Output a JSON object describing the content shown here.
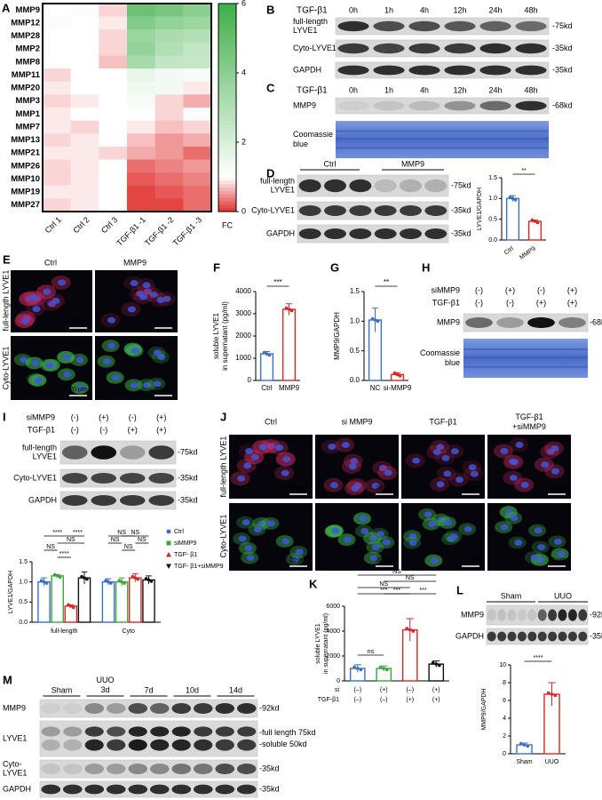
{
  "chart_data": [
    {
      "type": "heatmap",
      "rows": [
        "MMP9",
        "MMP12",
        "MMP28",
        "MMP2",
        "MMP8",
        "MMP11",
        "MMP20",
        "MMP3",
        "MMP1",
        "MMP7",
        "MMP13",
        "MMP21",
        "MMP26",
        "MMP10",
        "MMP19",
        "MMP27"
      ],
      "columns": [
        "Ctrl 1",
        "Ctrl 2",
        "Ctrl 3",
        "TGF-β1 -1",
        "TGF-β1 -2",
        "TGF-β1 -3"
      ],
      "values": [
        [
          1.0,
          1.1,
          0.8,
          4.8,
          4.5,
          4.0
        ],
        [
          1.1,
          1.0,
          0.9,
          4.2,
          3.8,
          3.6
        ],
        [
          1.0,
          1.0,
          0.8,
          3.6,
          3.2,
          3.0
        ],
        [
          1.0,
          1.0,
          0.8,
          3.8,
          3.0,
          2.6
        ],
        [
          1.0,
          1.0,
          0.7,
          3.3,
          2.6,
          2.5
        ],
        [
          0.8,
          1.0,
          1.0,
          1.6,
          1.3,
          1.2
        ],
        [
          0.9,
          1.0,
          1.0,
          1.4,
          1.3,
          0.9
        ],
        [
          0.8,
          0.9,
          1.0,
          1.2,
          0.8,
          0.6
        ],
        [
          0.9,
          1.0,
          1.0,
          1.0,
          0.8,
          1.1
        ],
        [
          0.9,
          0.8,
          1.0,
          0.9,
          0.7,
          0.8
        ],
        [
          0.8,
          0.9,
          1.0,
          0.7,
          0.5,
          0.6
        ],
        [
          0.9,
          0.9,
          0.8,
          0.6,
          0.5,
          0.3
        ],
        [
          0.8,
          0.9,
          1.0,
          0.3,
          0.4,
          0.5
        ],
        [
          0.8,
          0.9,
          1.0,
          0.2,
          0.3,
          0.4
        ],
        [
          0.9,
          0.9,
          1.0,
          0.1,
          0.2,
          0.3
        ],
        [
          0.8,
          0.9,
          1.0,
          0.1,
          0.1,
          0.3
        ]
      ],
      "zlabel": "FC",
      "zlim": [
        0,
        6
      ],
      "zticks": [
        0,
        2,
        4,
        6
      ],
      "colors": {
        "low": "#e0302e",
        "mid": "#ffffff",
        "high": "#3fae49"
      },
      "midpoint": 1
    },
    {
      "type": "bar",
      "ylabel": [
        "LYVE1/GAPDH"
      ],
      "categories": [
        "Ctrl",
        "MMP9"
      ],
      "values": [
        1.0,
        0.45
      ],
      "errors": [
        0.07,
        0.03
      ],
      "colors": [
        "#3b6fc4",
        "#d62728"
      ],
      "ylim": [
        0,
        1.5
      ],
      "yticks": [
        {
          "value": 0,
          "label": "0.0"
        },
        {
          "value": 0.5,
          "label": "0.5"
        },
        {
          "value": 1,
          "label": "1.0"
        },
        {
          "value": 1.5,
          "label": "1.5"
        }
      ],
      "annotations": [
        "**"
      ]
    },
    {
      "type": "bar",
      "ylabel": [
        "soluble LYVE1",
        "in supernatant (pg/ml)"
      ],
      "categories": [
        "Ctrl",
        "MMP9"
      ],
      "values": [
        1200,
        3200
      ],
      "errors": [
        100,
        250
      ],
      "colors": [
        "#3b6fc4",
        "#d62728"
      ],
      "ylim": [
        0,
        4000
      ],
      "yticks": [
        0,
        1000,
        2000,
        3000,
        4000
      ],
      "annotations": [
        "***"
      ]
    },
    {
      "type": "bar",
      "ylabel": [
        "MMP9/GAPDH"
      ],
      "categories": [
        "NC",
        "si-MMP9"
      ],
      "values": [
        1.02,
        0.1
      ],
      "errors": [
        0.2,
        0.03
      ],
      "colors": [
        "#3b6fc4",
        "#d62728"
      ],
      "ylim": [
        0,
        1.5
      ],
      "yticks": [
        {
          "value": 0,
          "label": "0.0"
        },
        {
          "value": 0.5,
          "label": "0.5"
        },
        {
          "value": 1,
          "label": "1.0"
        },
        {
          "value": 1.5,
          "label": "1.5"
        }
      ],
      "annotations": [
        "**"
      ]
    },
    {
      "type": "grouped-bar",
      "ylabel": [
        "LYVE1/GAPDH"
      ],
      "categories": [
        "full-length",
        "Cyto"
      ],
      "series": [
        {
          "name": "Ctrl",
          "color": "#3b6fc4",
          "values": [
            1.0,
            1.0
          ],
          "errors": [
            0.1,
            0.08
          ]
        },
        {
          "name": "siMMP9",
          "color": "#3aa63a",
          "values": [
            1.15,
            1.0
          ],
          "errors": [
            0.03,
            0.1
          ]
        },
        {
          "name": "TGF- β1",
          "color": "#d62728",
          "values": [
            0.4,
            1.1
          ],
          "errors": [
            0.03,
            0.1
          ]
        },
        {
          "name": "TGF- β1+siMMP9",
          "color": "#111111",
          "values": [
            1.1,
            1.05
          ],
          "errors": [
            0.15,
            0.1
          ]
        }
      ],
      "ylim": [
        0,
        1.5
      ],
      "yticks": [
        {
          "value": 0,
          "label": "0.0"
        },
        {
          "value": 0.5,
          "label": "0.5"
        },
        {
          "value": 1,
          "label": "1.0"
        },
        {
          "value": 1.5,
          "label": "1.5"
        }
      ],
      "annotations": [
        "****",
        "****",
        "NS",
        "NS",
        "****",
        "NS",
        "NS",
        "NS",
        "NS",
        "NS"
      ]
    },
    {
      "type": "bar",
      "ylabel": [
        "soluble LYVE1",
        "in supernatant (pg/ml)"
      ],
      "values": [
        1000,
        1000,
        4100,
        1350
      ],
      "errors": [
        300,
        200,
        900,
        250
      ],
      "colors": [
        "#3b6fc4",
        "#3aa63a",
        "#d62728",
        "#111111"
      ],
      "conditions": [
        {
          "name": "si",
          "signs": [
            "(–)",
            "(+)",
            "(–)",
            "(+)"
          ]
        },
        {
          "name": "TGF-β1",
          "signs": [
            "(–)",
            "(–)",
            "(+)",
            "(+)"
          ]
        }
      ],
      "ylim": [
        0,
        6000
      ],
      "yticks": [
        0,
        2000,
        4000,
        6000
      ],
      "annotations": [
        "NS",
        "NS",
        "NS",
        "***",
        "***",
        "***",
        "ns"
      ]
    },
    {
      "type": "bar",
      "ylabel": [
        "MMP9/GAPDH"
      ],
      "categories": [
        "Sham",
        "UUO"
      ],
      "values": [
        1.0,
        6.7
      ],
      "errors": [
        0.2,
        1.3
      ],
      "colors": [
        "#3b6fc4",
        "#d62728"
      ],
      "ylim": [
        0,
        10
      ],
      "yticks": [
        0,
        2,
        4,
        6,
        8,
        10
      ],
      "annotations": [
        "****"
      ]
    }
  ],
  "panels": {
    "A": {
      "label": "A"
    },
    "B": {
      "label": "B",
      "treatment": "TGF-β1",
      "times": [
        "0h",
        "1h",
        "4h",
        "12h",
        "24h",
        "48h"
      ],
      "blots": [
        {
          "name": [
            "full-length",
            "LYVE1"
          ],
          "size": "-75kd"
        },
        {
          "name": [
            "Cyto-LYVE1"
          ],
          "size": "-35kd"
        },
        {
          "name": [
            "GAPDH"
          ],
          "size": "-35kd"
        }
      ]
    },
    "C": {
      "label": "C",
      "treatment": "TGF-β1",
      "times": [
        "0h",
        "1h",
        "4h",
        "12h",
        "24h",
        "48h"
      ],
      "blots": [
        {
          "name": [
            "MMP9"
          ],
          "size": "-68kd"
        }
      ],
      "stain": [
        "Coomassie",
        "blue"
      ]
    },
    "D": {
      "label": "D",
      "groups": [
        "Ctrl",
        "MMP9"
      ],
      "blots": [
        {
          "name": [
            "full-length",
            "LYVE1"
          ],
          "size": "-75kd"
        },
        {
          "name": [
            "Cyto-LYVE1"
          ],
          "size": "-35kd"
        },
        {
          "name": [
            "GAPDH"
          ],
          "size": "-35kd"
        }
      ]
    },
    "E": {
      "label": "E",
      "columns": [
        "Ctrl",
        "MMP9"
      ],
      "rows": [
        "full-length LYVE1",
        "Cyto-LYVE1"
      ],
      "scale": "20 µm"
    },
    "F": {
      "label": "F"
    },
    "G": {
      "label": "G"
    },
    "H": {
      "label": "H",
      "conditions": [
        {
          "name": "siMMP9",
          "signs": [
            "(-)",
            "(+)",
            "(-)",
            "(+)"
          ]
        },
        {
          "name": "TGF-β1",
          "signs": [
            "(-)",
            "(-)",
            "(+)",
            "(+)"
          ]
        }
      ],
      "blots": [
        {
          "name": [
            "MMP9"
          ],
          "size": "-68kd"
        }
      ],
      "stain": [
        "Coomassie",
        "blue"
      ]
    },
    "I": {
      "label": "I",
      "conditions": [
        {
          "name": "siMMP9",
          "signs": [
            "(-)",
            "(+)",
            "(-)",
            "(+)"
          ]
        },
        {
          "name": "TGF-β1",
          "signs": [
            "(-)",
            "(-)",
            "(+)",
            "(+)"
          ]
        }
      ],
      "blots": [
        {
          "name": [
            "full-length",
            "LYVE1"
          ],
          "size": "-75kd"
        },
        {
          "name": [
            "Cyto-LYVE1"
          ],
          "size": "-35kd"
        },
        {
          "name": [
            "GAPDH"
          ],
          "size": "-35kd"
        }
      ]
    },
    "J": {
      "label": "J",
      "columns": [
        [
          "Ctrl"
        ],
        [
          "si MMP9"
        ],
        [
          "TGF-β1"
        ],
        [
          "TGF-β1",
          "+siMMP9"
        ]
      ],
      "rows": [
        "full-length LYVE1",
        "Cyto-LYVE1"
      ],
      "scale": "20 µm"
    },
    "K": {
      "label": "K"
    },
    "L": {
      "label": "L",
      "groups": [
        "Sham",
        "UUO"
      ],
      "blots": [
        {
          "name": [
            "MMP9"
          ],
          "size": "-92kd"
        },
        {
          "name": [
            "GAPDH"
          ],
          "size": "-35kd"
        }
      ]
    },
    "M": {
      "label": "M",
      "groups": [
        [
          "Sham"
        ],
        [
          "UUO",
          "3d"
        ],
        [
          "7d"
        ],
        [
          "10d"
        ],
        [
          "14d"
        ]
      ],
      "blots": [
        {
          "name": [
            "MMP9"
          ],
          "size": [
            "-92kd"
          ]
        },
        {
          "name": [
            "LYVE1"
          ],
          "size": [
            "-full length 75kd",
            "-soluble 50kd"
          ]
        },
        {
          "name": [
            "Cyto-",
            "LYVE1"
          ],
          "size": [
            "-35kd"
          ]
        },
        {
          "name": [
            "GAPDH"
          ],
          "size": [
            "-35kd"
          ]
        }
      ]
    }
  }
}
